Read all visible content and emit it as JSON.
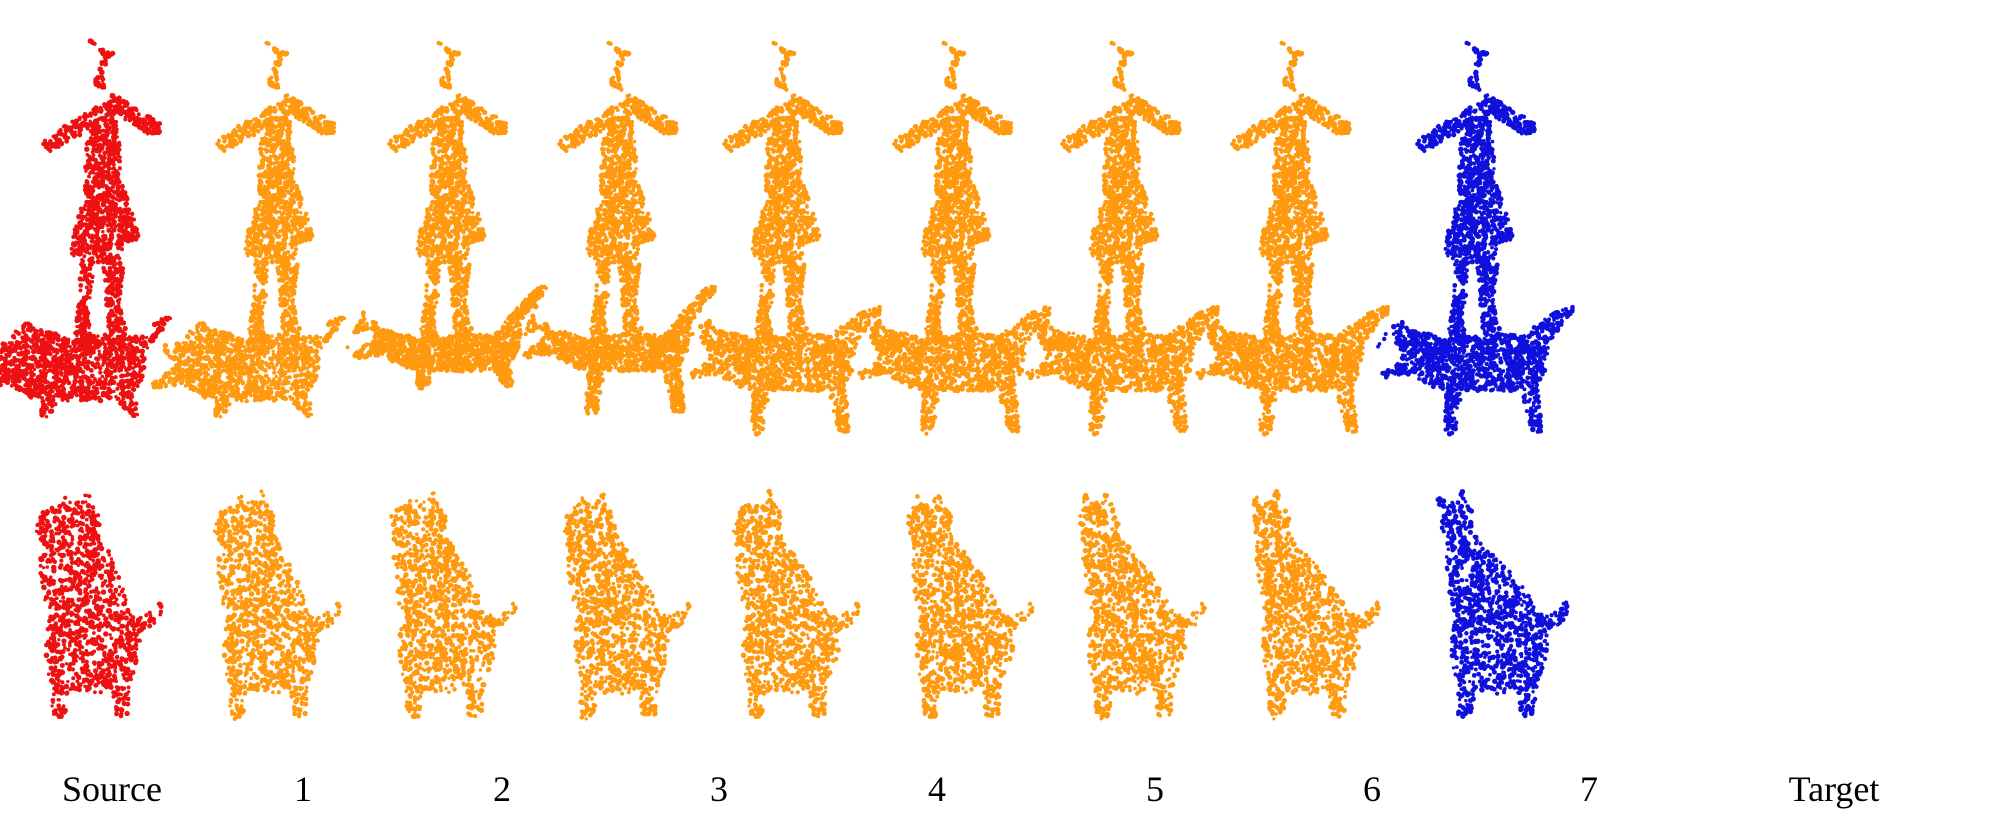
{
  "figure": {
    "column_labels": [
      "Source",
      "1",
      "2",
      "3",
      "4",
      "5",
      "6",
      "7",
      "Target"
    ],
    "rows": [
      "human-figure",
      "cat",
      "dog"
    ],
    "colors": {
      "source": "#ee1111",
      "intermediate": "#ff9a10",
      "target": "#1010dd"
    }
  }
}
